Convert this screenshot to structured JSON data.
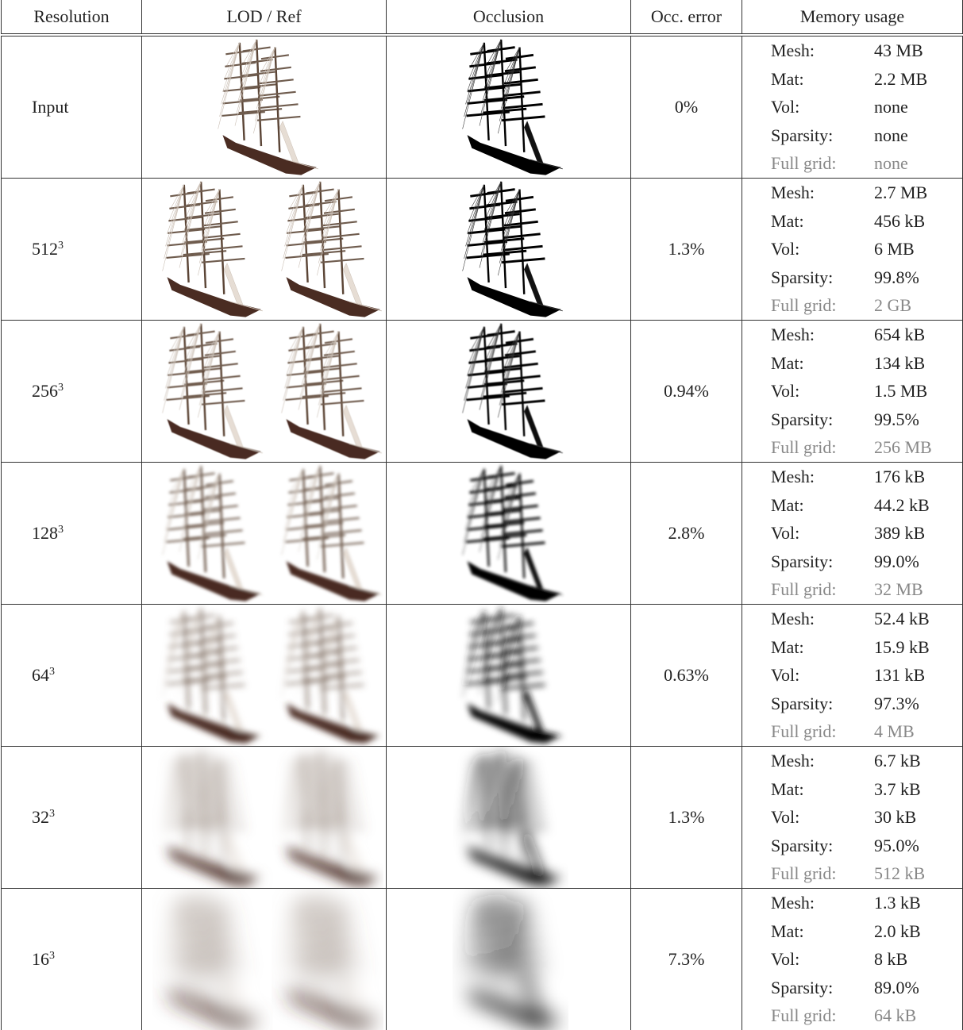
{
  "table": {
    "header": [
      "Resolution",
      "LOD / Ref",
      "Occlusion",
      "Occ. error",
      "Memory usage"
    ],
    "rows": [
      {
        "resolution": "Input",
        "occ_error": "0%",
        "memory": [
          [
            "Mesh:",
            "43 MB"
          ],
          [
            "Mat:",
            "2.2 MB"
          ],
          [
            "Vol:",
            "none"
          ],
          [
            "Sparsity:",
            "none"
          ],
          [
            "Full grid:",
            "none"
          ]
        ]
      },
      {
        "resolution": {
          "base": "512",
          "sup": "3"
        },
        "occ_error": "1.3%",
        "memory": [
          [
            "Mesh:",
            "2.7 MB"
          ],
          [
            "Mat:",
            "456 kB"
          ],
          [
            "Vol:",
            "6 MB"
          ],
          [
            "Sparsity:",
            "99.8%"
          ],
          [
            "Full grid:",
            "2 GB"
          ]
        ]
      },
      {
        "resolution": {
          "base": "256",
          "sup": "3"
        },
        "occ_error": "0.94%",
        "memory": [
          [
            "Mesh:",
            "654 kB"
          ],
          [
            "Mat:",
            "134 kB"
          ],
          [
            "Vol:",
            "1.5 MB"
          ],
          [
            "Sparsity:",
            "99.5%"
          ],
          [
            "Full grid:",
            "256 MB"
          ]
        ]
      },
      {
        "resolution": {
          "base": "128",
          "sup": "3"
        },
        "occ_error": "2.8%",
        "memory": [
          [
            "Mesh:",
            "176 kB"
          ],
          [
            "Mat:",
            "44.2 kB"
          ],
          [
            "Vol:",
            "389 kB"
          ],
          [
            "Sparsity:",
            "99.0%"
          ],
          [
            "Full grid:",
            "32 MB"
          ]
        ]
      },
      {
        "resolution": {
          "base": "64",
          "sup": "3"
        },
        "occ_error": "0.63%",
        "memory": [
          [
            "Mesh:",
            "52.4 kB"
          ],
          [
            "Mat:",
            "15.9 kB"
          ],
          [
            "Vol:",
            "131 kB"
          ],
          [
            "Sparsity:",
            "97.3%"
          ],
          [
            "Full grid:",
            "4 MB"
          ]
        ]
      },
      {
        "resolution": {
          "base": "32",
          "sup": "3"
        },
        "occ_error": "1.3%",
        "memory": [
          [
            "Mesh:",
            "6.7 kB"
          ],
          [
            "Mat:",
            "3.7 kB"
          ],
          [
            "Vol:",
            "30 kB"
          ],
          [
            "Sparsity:",
            "95.0%"
          ],
          [
            "Full grid:",
            "512 kB"
          ]
        ]
      },
      {
        "resolution": {
          "base": "16",
          "sup": "3"
        },
        "occ_error": "7.3%",
        "memory": [
          [
            "Mesh:",
            "1.3 kB"
          ],
          [
            "Mat:",
            "2.0 kB"
          ],
          [
            "Vol:",
            "8 kB"
          ],
          [
            "Sparsity:",
            "89.0%"
          ],
          [
            "Full grid:",
            "64 kB"
          ]
        ]
      }
    ]
  }
}
